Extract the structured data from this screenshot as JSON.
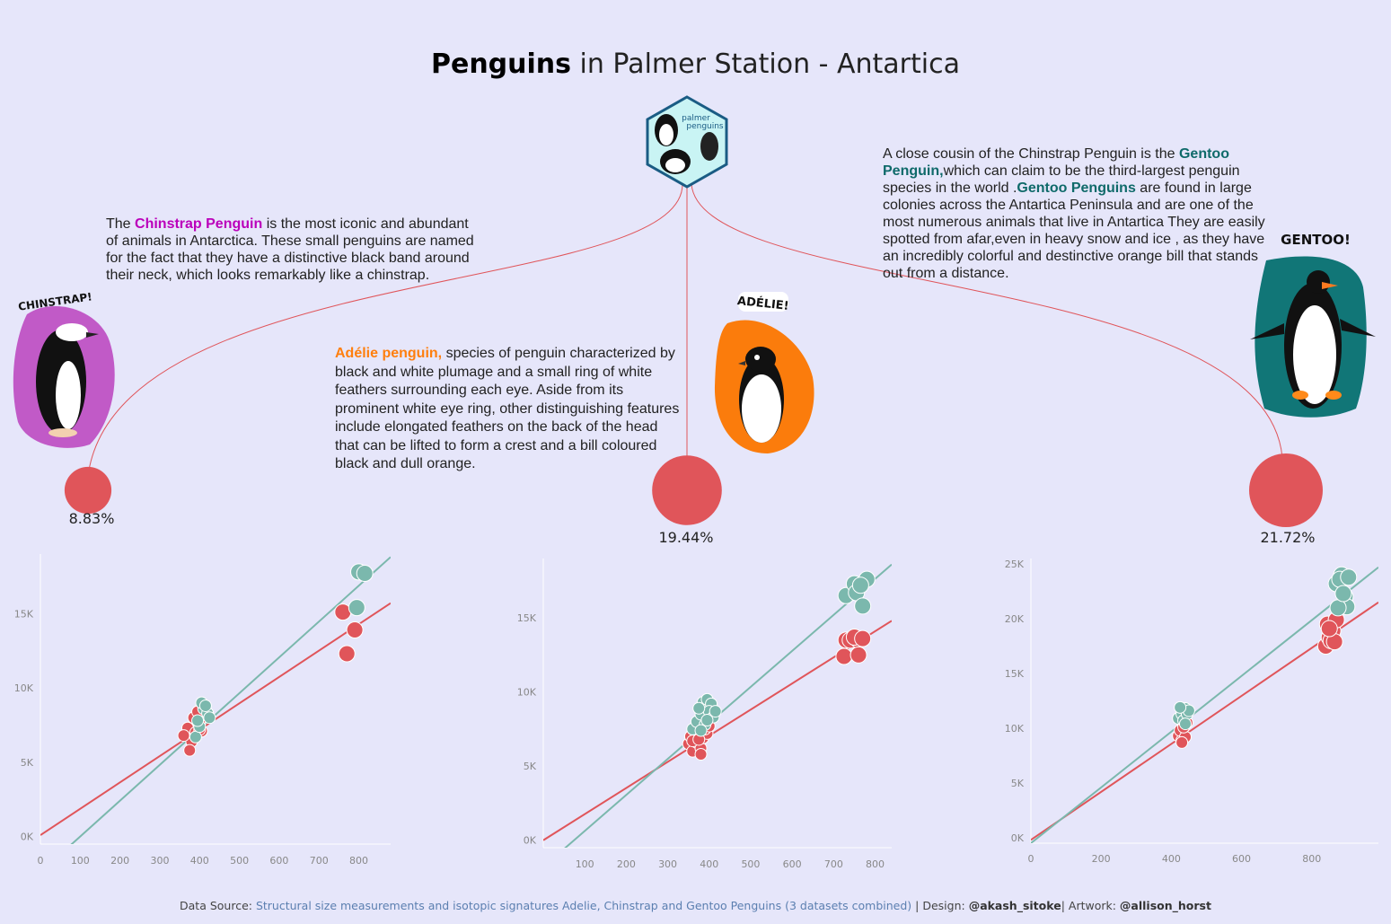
{
  "header": {
    "title_bold": "Penguins",
    "title_rest": " in Palmer Station - Antartica",
    "logo_text": [
      "palmer",
      "penguins"
    ]
  },
  "descriptions": {
    "chinstrap": {
      "pre": "The ",
      "highlight": "Chinstrap Penguin",
      "post": " is the most iconic and abundant of animals in Antarctica. These small penguins are named for the fact that they have a distinctive black band around their neck, which looks remarkably like a chinstrap."
    },
    "adelie": {
      "highlight": "Adélie penguin,",
      "post": " species of penguin characterized by black and white plumage and a small ring of white feathers surrounding each eye. Aside from its prominent white eye ring, other distinguishing features include elongated feathers on the back of the head that can be lifted to form a crest and a bill coloured black and dull orange."
    },
    "gentoo": {
      "pre": "A close cousin of the Chinstrap Penguin is the ",
      "highlight1": "Gentoo Penguin,",
      "mid": "which can claim to be the third-largest penguin species in the world .",
      "highlight2": "Gentoo Penguins",
      "post": " are found in large colonies across the Antartica Peninsula and are one of the most numerous animals that live in Antartica They are easily spotted from afar,even in heavy snow and ice , as they have an incredibly colorful and destinctive orange bill that stands out from a distance."
    }
  },
  "artwork_labels": {
    "chinstrap": "CHINSTRAP!",
    "adelie": "ADÉLIE!",
    "gentoo": "GENTOO!"
  },
  "bubbles": [
    {
      "species": "chinstrap",
      "value": 8.83,
      "label": "8.83%"
    },
    {
      "species": "adelie",
      "value": 19.44,
      "label": "19.44%"
    },
    {
      "species": "gentoo",
      "value": 21.72,
      "label": "21.72%"
    }
  ],
  "colors": {
    "red": "#e0555a",
    "teal": "#7bb8ad",
    "background": "#e6e6fa"
  },
  "chart_data": [
    {
      "type": "scatter",
      "species": "chinstrap",
      "xlim": [
        0,
        880
      ],
      "ylim": [
        -500,
        19000
      ],
      "xticks": [
        0,
        100,
        200,
        300,
        400,
        500,
        600,
        700,
        800
      ],
      "yticks": [
        0,
        5000,
        10000,
        15000
      ],
      "ytick_labels": [
        "0K",
        "5K",
        "10K",
        "15K"
      ],
      "series": [
        {
          "color": "red",
          "line": [
            [
              0,
              100
            ],
            [
              880,
              15700
            ]
          ],
          "points": [
            [
              370,
              7300
            ],
            [
              380,
              6400
            ],
            [
              375,
              5800
            ],
            [
              390,
              7000
            ],
            [
              395,
              7800
            ],
            [
              385,
              8000
            ],
            [
              400,
              7600
            ],
            [
              410,
              8200
            ],
            [
              405,
              7100
            ],
            [
              360,
              6800
            ],
            [
              395,
              8400
            ],
            [
              400,
              7200
            ],
            [
              760,
              15100
            ],
            [
              770,
              12300
            ],
            [
              790,
              13900
            ]
          ]
        },
        {
          "color": "teal",
          "line": [
            [
              0,
              -2400
            ],
            [
              880,
              18800
            ]
          ],
          "points": [
            [
              390,
              6700
            ],
            [
              400,
              7400
            ],
            [
              410,
              8600
            ],
            [
              405,
              9000
            ],
            [
              420,
              8300
            ],
            [
              425,
              8000
            ],
            [
              395,
              7800
            ],
            [
              415,
              8800
            ],
            [
              800,
              17800
            ],
            [
              815,
              17700
            ],
            [
              795,
              15400
            ]
          ]
        }
      ]
    },
    {
      "type": "scatter",
      "species": "adelie",
      "xlim": [
        0,
        840
      ],
      "ylim": [
        -500,
        19000
      ],
      "xticks": [
        100,
        200,
        300,
        400,
        500,
        600,
        700,
        800
      ],
      "yticks": [
        0,
        5000,
        10000,
        15000
      ],
      "ytick_labels": [
        "0K",
        "5K",
        "10K",
        "15K"
      ],
      "series": [
        {
          "color": "red",
          "line": [
            [
              0,
              0
            ],
            [
              840,
              14800
            ]
          ],
          "points": [
            [
              350,
              6500
            ],
            [
              360,
              6000
            ],
            [
              370,
              6600
            ],
            [
              355,
              7000
            ],
            [
              380,
              6200
            ],
            [
              385,
              6900
            ],
            [
              395,
              7200
            ],
            [
              370,
              7400
            ],
            [
              360,
              6700
            ],
            [
              390,
              7500
            ],
            [
              380,
              5800
            ],
            [
              375,
              6800
            ],
            [
              400,
              7700
            ],
            [
              730,
              13500
            ],
            [
              740,
              13500
            ],
            [
              760,
              13500
            ],
            [
              725,
              12400
            ],
            [
              750,
              13700
            ],
            [
              770,
              13600
            ],
            [
              760,
              12500
            ]
          ]
        },
        {
          "color": "teal",
          "line": [
            [
              0,
              -1800
            ],
            [
              840,
              18600
            ]
          ],
          "points": [
            [
              360,
              7500
            ],
            [
              370,
              8000
            ],
            [
              380,
              8500
            ],
            [
              385,
              9300
            ],
            [
              395,
              9500
            ],
            [
              405,
              9200
            ],
            [
              400,
              8700
            ],
            [
              410,
              8300
            ],
            [
              375,
              8900
            ],
            [
              390,
              7800
            ],
            [
              380,
              7400
            ],
            [
              395,
              8100
            ],
            [
              415,
              8700
            ],
            [
              730,
              16500
            ],
            [
              750,
              17300
            ],
            [
              755,
              16700
            ],
            [
              770,
              15800
            ],
            [
              780,
              17600
            ],
            [
              765,
              17200
            ]
          ]
        }
      ]
    },
    {
      "type": "scatter",
      "species": "gentoo",
      "xlim": [
        0,
        990
      ],
      "ylim": [
        -500,
        25500
      ],
      "xticks": [
        0,
        200,
        400,
        600,
        800
      ],
      "yticks": [
        0,
        5000,
        10000,
        15000,
        20000,
        25000
      ],
      "ytick_labels": [
        "0K",
        "5K",
        "10K",
        "15K",
        "20K",
        "25K"
      ],
      "series": [
        {
          "color": "red",
          "line": [
            [
              0,
              -200
            ],
            [
              990,
              21500
            ]
          ],
          "points": [
            [
              420,
              9300
            ],
            [
              430,
              8900
            ],
            [
              425,
              9800
            ],
            [
              440,
              9200
            ],
            [
              435,
              10100
            ],
            [
              430,
              8700
            ],
            [
              445,
              10500
            ],
            [
              840,
              17500
            ],
            [
              850,
              18300
            ],
            [
              860,
              18900
            ],
            [
              845,
              19500
            ],
            [
              870,
              19900
            ],
            [
              855,
              18000
            ],
            [
              865,
              17900
            ],
            [
              850,
              19100
            ]
          ]
        },
        {
          "color": "teal",
          "line": [
            [
              0,
              -500
            ],
            [
              990,
              24700
            ]
          ],
          "points": [
            [
              420,
              10900
            ],
            [
              430,
              11300
            ],
            [
              440,
              11800
            ],
            [
              435,
              10700
            ],
            [
              445,
              11300
            ],
            [
              450,
              11600
            ],
            [
              425,
              11900
            ],
            [
              440,
              10400
            ],
            [
              870,
              23200
            ],
            [
              885,
              24000
            ],
            [
              895,
              22000
            ],
            [
              880,
              23600
            ],
            [
              900,
              21100
            ],
            [
              905,
              23800
            ],
            [
              875,
              21000
            ],
            [
              890,
              22300
            ]
          ]
        }
      ]
    }
  ],
  "footer": {
    "prefix": "Data Source: ",
    "link": "Structural size measurements and isotopic signatures Adelie, Chinstrap and Gentoo Penguins (3 datasets combined)",
    "design_label": " | Design: ",
    "designer": "@akash_sitoke",
    "artwork_label": "| Artwork: ",
    "artist": "@allison_horst"
  }
}
